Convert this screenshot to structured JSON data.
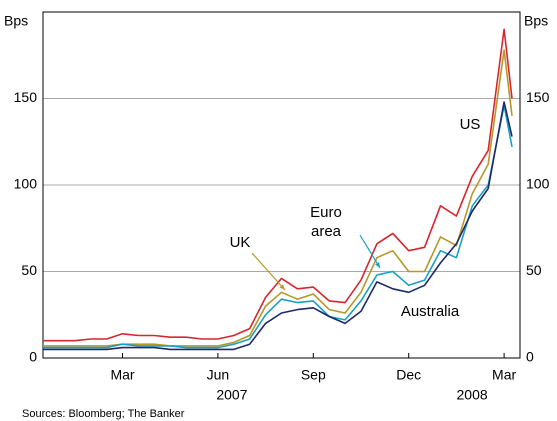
{
  "chart_data": {
    "type": "line",
    "y_label": "Bps",
    "y2_label": "Bps",
    "source": "Sources: Bloomberg; The Banker",
    "x": [
      -0.5,
      0,
      0.5,
      1,
      1.5,
      2,
      2.5,
      3,
      3.5,
      4,
      4.5,
      5,
      5.5,
      6,
      6.5,
      7,
      7.5,
      8,
      8.5,
      9,
      9.5,
      10,
      10.5,
      11,
      11.5,
      12,
      12.5,
      13,
      13.5,
      14,
      14.25
    ],
    "xlim": [
      -0.5,
      14.5
    ],
    "xticks": [
      {
        "value": 2,
        "label": "Mar"
      },
      {
        "value": 5,
        "label": "Jun"
      },
      {
        "value": 8,
        "label": "Sep"
      },
      {
        "value": 11,
        "label": "Dec"
      },
      {
        "value": 14,
        "label": "Mar"
      }
    ],
    "years": [
      "2007",
      "2008"
    ],
    "ylim": [
      0,
      200
    ],
    "yticks": [
      0,
      50,
      100,
      150
    ],
    "y2lim": [
      0,
      200
    ],
    "y2ticks": [
      0,
      50,
      100,
      150
    ],
    "grid": true,
    "series": [
      {
        "name": "US",
        "color": "#d7262e",
        "values": [
          10,
          10,
          10,
          11,
          11,
          14,
          13,
          13,
          12,
          12,
          11,
          11,
          13,
          17,
          35,
          46,
          40,
          41,
          33,
          32,
          45,
          66,
          72,
          62,
          64,
          88,
          82,
          105,
          120,
          190,
          150
        ]
      },
      {
        "name": "UK",
        "color": "#b8972a",
        "values": [
          7,
          7,
          7,
          7,
          7,
          8,
          8,
          8,
          7,
          7,
          7,
          7,
          9,
          13,
          30,
          38,
          34,
          37,
          28,
          26,
          38,
          58,
          62,
          50,
          50,
          70,
          65,
          95,
          112,
          178,
          140
        ]
      },
      {
        "name": "Euro area",
        "color": "#1aa0c1",
        "values": [
          6,
          6,
          6,
          6,
          6,
          8,
          7,
          7,
          7,
          6,
          6,
          6,
          8,
          11,
          25,
          34,
          32,
          33,
          24,
          22,
          33,
          48,
          50,
          42,
          45,
          62,
          58,
          88,
          100,
          146,
          122
        ]
      },
      {
        "name": "Australia",
        "color": "#1d2a6b",
        "values": [
          5,
          5,
          5,
          5,
          5,
          6,
          6,
          6,
          5,
          5,
          5,
          5,
          5,
          8,
          20,
          26,
          28,
          29,
          24,
          20,
          27,
          44,
          40,
          38,
          42,
          55,
          66,
          85,
          98,
          148,
          128
        ]
      }
    ],
    "annotations": [
      {
        "lines": [
          "US"
        ],
        "color": "#d7262e"
      },
      {
        "lines": [
          "UK"
        ],
        "color": "#b8972a"
      },
      {
        "lines": [
          "Euro",
          "area"
        ],
        "color": "#1aa0c1"
      },
      {
        "lines": [
          "Australia"
        ],
        "color": "#1d2a6b"
      }
    ]
  }
}
